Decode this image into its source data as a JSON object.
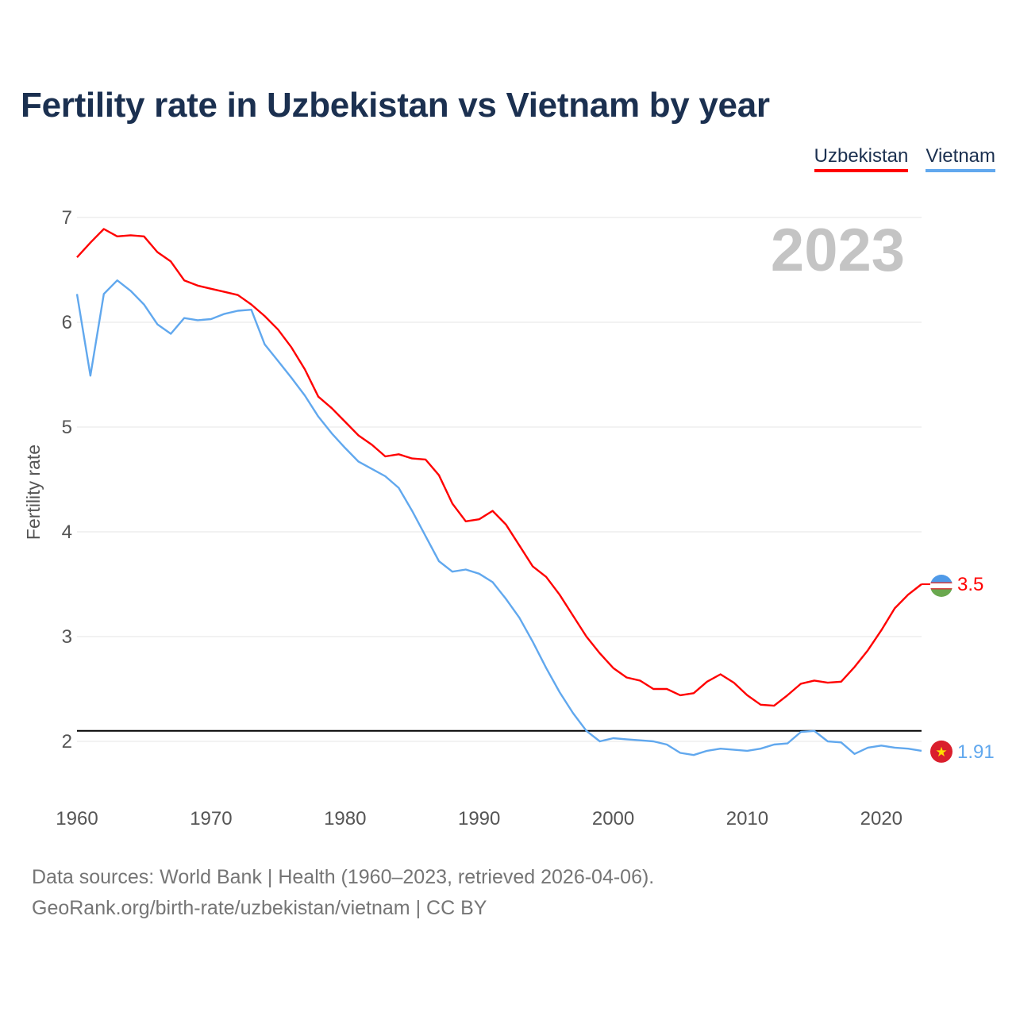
{
  "title": "Fertility rate in Uzbekistan vs Vietnam by year",
  "legend": {
    "uzbekistan": "Uzbekistan",
    "vietnam": "Vietnam"
  },
  "year_watermark": "2023",
  "footer": {
    "line1": "Data sources: World Bank | Health (1960–2023, retrieved 2026-04-06).",
    "line2": "GeoRank.org/birth-rate/uzbekistan/vietnam | CC BY"
  },
  "chart_data": {
    "type": "line",
    "title": "Fertility rate in Uzbekistan vs Vietnam by year",
    "xlabel": "",
    "ylabel": "Fertility rate",
    "xlim": [
      1960,
      2023
    ],
    "ylim": [
      1.55,
      7.1
    ],
    "x_ticks": [
      1960,
      1970,
      1980,
      1990,
      2000,
      2010,
      2020
    ],
    "y_ticks": [
      2,
      3,
      4,
      5,
      6,
      7
    ],
    "reference_line": 2.1,
    "end_labels": {
      "uzbekistan": "3.5",
      "vietnam": "1.91"
    },
    "x": [
      1960,
      1961,
      1962,
      1963,
      1964,
      1965,
      1966,
      1967,
      1968,
      1969,
      1970,
      1971,
      1972,
      1973,
      1974,
      1975,
      1976,
      1977,
      1978,
      1979,
      1980,
      1981,
      1982,
      1983,
      1984,
      1985,
      1986,
      1987,
      1988,
      1989,
      1990,
      1991,
      1992,
      1993,
      1994,
      1995,
      1996,
      1997,
      1998,
      1999,
      2000,
      2001,
      2002,
      2003,
      2004,
      2005,
      2006,
      2007,
      2008,
      2009,
      2010,
      2011,
      2012,
      2013,
      2014,
      2015,
      2016,
      2017,
      2018,
      2019,
      2020,
      2021,
      2022,
      2023
    ],
    "series": [
      {
        "name": "Uzbekistan",
        "color": "#ff0000",
        "values": [
          6.62,
          6.76,
          6.89,
          6.82,
          6.83,
          6.82,
          6.67,
          6.58,
          6.4,
          6.35,
          6.32,
          6.29,
          6.26,
          6.17,
          6.06,
          5.93,
          5.76,
          5.55,
          5.29,
          5.18,
          5.05,
          4.92,
          4.83,
          4.72,
          4.74,
          4.7,
          4.69,
          4.54,
          4.27,
          4.1,
          4.12,
          4.2,
          4.07,
          3.87,
          3.67,
          3.57,
          3.4,
          3.2,
          3.0,
          2.84,
          2.7,
          2.61,
          2.58,
          2.5,
          2.5,
          2.44,
          2.46,
          2.57,
          2.64,
          2.56,
          2.44,
          2.35,
          2.34,
          2.44,
          2.55,
          2.58,
          2.56,
          2.57,
          2.71,
          2.87,
          3.06,
          3.27,
          3.4,
          3.5
        ]
      },
      {
        "name": "Vietnam",
        "color": "#61a8ee",
        "values": [
          6.27,
          5.49,
          6.27,
          6.4,
          6.3,
          6.17,
          5.98,
          5.89,
          6.04,
          6.02,
          6.03,
          6.08,
          6.11,
          6.12,
          5.79,
          5.63,
          5.47,
          5.3,
          5.1,
          4.94,
          4.8,
          4.67,
          4.6,
          4.53,
          4.42,
          4.2,
          3.96,
          3.72,
          3.62,
          3.64,
          3.6,
          3.52,
          3.36,
          3.18,
          2.95,
          2.7,
          2.47,
          2.27,
          2.1,
          2.0,
          2.03,
          2.02,
          2.01,
          2.0,
          1.97,
          1.89,
          1.87,
          1.91,
          1.93,
          1.92,
          1.91,
          1.93,
          1.97,
          1.98,
          2.09,
          2.1,
          2.0,
          1.99,
          1.88,
          1.94,
          1.96,
          1.94,
          1.93,
          1.91
        ]
      }
    ]
  }
}
